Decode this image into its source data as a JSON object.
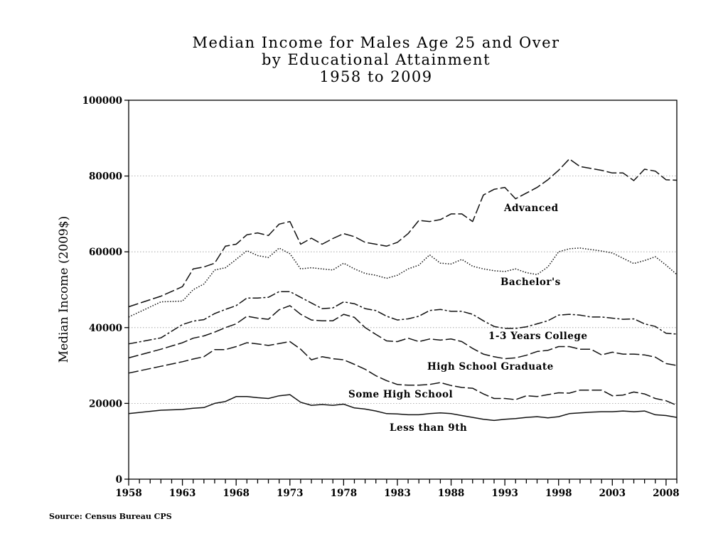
{
  "chart_data": {
    "type": "line",
    "title": [
      "Median Income for Males Age 25 and Over",
      "by Educational Attainment",
      "1958 to 2009"
    ],
    "xlabel": "",
    "ylabel": "Median Income (2009$)",
    "xlim": [
      1958,
      2009
    ],
    "ylim": [
      0,
      100000
    ],
    "x_ticks": [
      1958,
      1963,
      1968,
      1973,
      1978,
      1983,
      1988,
      1993,
      1998,
      2003,
      2008
    ],
    "y_ticks": [
      0,
      20000,
      40000,
      60000,
      80000,
      100000
    ],
    "grid": "horizontal dotted",
    "legend": "none (series labeled inline)",
    "series": [
      {
        "name": "Advanced",
        "style": "long-dash",
        "points": [
          [
            1958,
            45500
          ],
          [
            1961,
            48300
          ],
          [
            1963,
            50800
          ],
          [
            1964,
            55500
          ],
          [
            1965,
            56000
          ],
          [
            1966,
            57000
          ],
          [
            1967,
            61500
          ],
          [
            1968,
            62000
          ],
          [
            1969,
            64500
          ],
          [
            1970,
            65000
          ],
          [
            1971,
            64300
          ],
          [
            1972,
            67300
          ],
          [
            1973,
            68000
          ],
          [
            1974,
            62000
          ],
          [
            1975,
            63600
          ],
          [
            1976,
            62000
          ],
          [
            1977,
            63500
          ],
          [
            1978,
            64800
          ],
          [
            1979,
            64000
          ],
          [
            1980,
            62500
          ],
          [
            1981,
            62000
          ],
          [
            1982,
            61500
          ],
          [
            1983,
            62500
          ],
          [
            1984,
            64800
          ],
          [
            1985,
            68300
          ],
          [
            1986,
            68000
          ],
          [
            1987,
            68500
          ],
          [
            1988,
            70000
          ],
          [
            1989,
            70000
          ],
          [
            1990,
            68000
          ],
          [
            1991,
            75000
          ],
          [
            1992,
            76500
          ],
          [
            1993,
            77000
          ],
          [
            1994,
            74000
          ],
          [
            1995,
            75500
          ],
          [
            1996,
            77000
          ],
          [
            1997,
            79000
          ],
          [
            1998,
            81500
          ],
          [
            1999,
            84500
          ],
          [
            2000,
            82500
          ],
          [
            2001,
            82000
          ],
          [
            2002,
            81500
          ],
          [
            2003,
            80800
          ],
          [
            2004,
            80800
          ],
          [
            2005,
            78800
          ],
          [
            2006,
            81800
          ],
          [
            2007,
            81300
          ],
          [
            2008,
            79000
          ],
          [
            2009,
            78900
          ]
        ]
      },
      {
        "name": "Bachelor's",
        "style": "dotted",
        "points": [
          [
            1958,
            42800
          ],
          [
            1961,
            46800
          ],
          [
            1963,
            47000
          ],
          [
            1964,
            50000
          ],
          [
            1965,
            51500
          ],
          [
            1966,
            55200
          ],
          [
            1967,
            55800
          ],
          [
            1968,
            58000
          ],
          [
            1969,
            60300
          ],
          [
            1970,
            59000
          ],
          [
            1971,
            58500
          ],
          [
            1972,
            61000
          ],
          [
            1973,
            59500
          ],
          [
            1974,
            55500
          ],
          [
            1975,
            55800
          ],
          [
            1976,
            55500
          ],
          [
            1977,
            55200
          ],
          [
            1978,
            57000
          ],
          [
            1979,
            55500
          ],
          [
            1980,
            54300
          ],
          [
            1981,
            53800
          ],
          [
            1982,
            53000
          ],
          [
            1983,
            53800
          ],
          [
            1984,
            55500
          ],
          [
            1985,
            56500
          ],
          [
            1986,
            59200
          ],
          [
            1987,
            57000
          ],
          [
            1988,
            56800
          ],
          [
            1989,
            58000
          ],
          [
            1990,
            56200
          ],
          [
            1991,
            55500
          ],
          [
            1992,
            55000
          ],
          [
            1993,
            54800
          ],
          [
            1994,
            55500
          ],
          [
            1995,
            54500
          ],
          [
            1996,
            54000
          ],
          [
            1997,
            56000
          ],
          [
            1998,
            60000
          ],
          [
            1999,
            60800
          ],
          [
            2000,
            61000
          ],
          [
            2001,
            60600
          ],
          [
            2002,
            60200
          ],
          [
            2003,
            59700
          ],
          [
            2004,
            58300
          ],
          [
            2005,
            56900
          ],
          [
            2006,
            57700
          ],
          [
            2007,
            58700
          ],
          [
            2008,
            56500
          ],
          [
            2009,
            54000
          ]
        ]
      },
      {
        "name": "1-3 Years College",
        "style": "dash-dot",
        "points": [
          [
            1958,
            35700
          ],
          [
            1961,
            37300
          ],
          [
            1963,
            40800
          ],
          [
            1964,
            41700
          ],
          [
            1965,
            42100
          ],
          [
            1966,
            43700
          ],
          [
            1967,
            44800
          ],
          [
            1968,
            45800
          ],
          [
            1969,
            47800
          ],
          [
            1970,
            47800
          ],
          [
            1971,
            48000
          ],
          [
            1972,
            49500
          ],
          [
            1973,
            49500
          ],
          [
            1974,
            48000
          ],
          [
            1975,
            46500
          ],
          [
            1976,
            45000
          ],
          [
            1977,
            45200
          ],
          [
            1978,
            46800
          ],
          [
            1979,
            46300
          ],
          [
            1980,
            45000
          ],
          [
            1981,
            44500
          ],
          [
            1982,
            43000
          ],
          [
            1983,
            42000
          ],
          [
            1984,
            42300
          ],
          [
            1985,
            43000
          ],
          [
            1986,
            44500
          ],
          [
            1987,
            44800
          ],
          [
            1988,
            44300
          ],
          [
            1989,
            44300
          ],
          [
            1990,
            43500
          ],
          [
            1991,
            41800
          ],
          [
            1992,
            40300
          ],
          [
            1993,
            39800
          ],
          [
            1994,
            39800
          ],
          [
            1995,
            40200
          ],
          [
            1996,
            41000
          ],
          [
            1997,
            41800
          ],
          [
            1998,
            43300
          ],
          [
            1999,
            43500
          ],
          [
            2000,
            43300
          ],
          [
            2001,
            42800
          ],
          [
            2002,
            42800
          ],
          [
            2003,
            42500
          ],
          [
            2004,
            42200
          ],
          [
            2005,
            42300
          ],
          [
            2006,
            41000
          ],
          [
            2007,
            40300
          ],
          [
            2008,
            38500
          ],
          [
            2009,
            38300
          ]
        ]
      },
      {
        "name": "High School Graduate",
        "style": "long-dash",
        "points": [
          [
            1958,
            32000
          ],
          [
            1961,
            34300
          ],
          [
            1963,
            36000
          ],
          [
            1964,
            37200
          ],
          [
            1965,
            37800
          ],
          [
            1966,
            38800
          ],
          [
            1967,
            40000
          ],
          [
            1968,
            41000
          ],
          [
            1969,
            43000
          ],
          [
            1970,
            42500
          ],
          [
            1971,
            42200
          ],
          [
            1972,
            44700
          ],
          [
            1973,
            45800
          ],
          [
            1974,
            43500
          ],
          [
            1975,
            42000
          ],
          [
            1976,
            41800
          ],
          [
            1977,
            41800
          ],
          [
            1978,
            43500
          ],
          [
            1979,
            42700
          ],
          [
            1980,
            40000
          ],
          [
            1981,
            38200
          ],
          [
            1982,
            36500
          ],
          [
            1983,
            36300
          ],
          [
            1984,
            37200
          ],
          [
            1985,
            36300
          ],
          [
            1986,
            37000
          ],
          [
            1987,
            36700
          ],
          [
            1988,
            37000
          ],
          [
            1989,
            36300
          ],
          [
            1990,
            34500
          ],
          [
            1991,
            33000
          ],
          [
            1992,
            32300
          ],
          [
            1993,
            31800
          ],
          [
            1994,
            32000
          ],
          [
            1995,
            32700
          ],
          [
            1996,
            33700
          ],
          [
            1997,
            34000
          ],
          [
            1998,
            35000
          ],
          [
            1999,
            35000
          ],
          [
            2000,
            34300
          ],
          [
            2001,
            34300
          ],
          [
            2002,
            32800
          ],
          [
            2003,
            33500
          ],
          [
            2004,
            33000
          ],
          [
            2005,
            33000
          ],
          [
            2006,
            32800
          ],
          [
            2007,
            32200
          ],
          [
            2008,
            30500
          ],
          [
            2009,
            30000
          ]
        ]
      },
      {
        "name": "Some High School",
        "style": "long-dash",
        "points": [
          [
            1958,
            28000
          ],
          [
            1961,
            29800
          ],
          [
            1963,
            31000
          ],
          [
            1964,
            31700
          ],
          [
            1965,
            32300
          ],
          [
            1966,
            34200
          ],
          [
            1967,
            34200
          ],
          [
            1968,
            35000
          ],
          [
            1969,
            36000
          ],
          [
            1970,
            35700
          ],
          [
            1971,
            35300
          ],
          [
            1972,
            35800
          ],
          [
            1973,
            36300
          ],
          [
            1974,
            34300
          ],
          [
            1975,
            31500
          ],
          [
            1976,
            32300
          ],
          [
            1977,
            31800
          ],
          [
            1978,
            31500
          ],
          [
            1979,
            30300
          ],
          [
            1980,
            29000
          ],
          [
            1981,
            27300
          ],
          [
            1982,
            26000
          ],
          [
            1983,
            25000
          ],
          [
            1984,
            24800
          ],
          [
            1985,
            24800
          ],
          [
            1986,
            25000
          ],
          [
            1987,
            25500
          ],
          [
            1988,
            24700
          ],
          [
            1989,
            24200
          ],
          [
            1990,
            24000
          ],
          [
            1991,
            22500
          ],
          [
            1992,
            21300
          ],
          [
            1993,
            21300
          ],
          [
            1994,
            21000
          ],
          [
            1995,
            22000
          ],
          [
            1996,
            21800
          ],
          [
            1997,
            22300
          ],
          [
            1998,
            22800
          ],
          [
            1999,
            22700
          ],
          [
            2000,
            23500
          ],
          [
            2001,
            23500
          ],
          [
            2002,
            23500
          ],
          [
            2003,
            22000
          ],
          [
            2004,
            22200
          ],
          [
            2005,
            23000
          ],
          [
            2006,
            22500
          ],
          [
            2007,
            21300
          ],
          [
            2008,
            20700
          ],
          [
            2009,
            19500
          ]
        ]
      },
      {
        "name": "Less than 9th",
        "style": "solid",
        "points": [
          [
            1958,
            17300
          ],
          [
            1961,
            18200
          ],
          [
            1963,
            18400
          ],
          [
            1964,
            18700
          ],
          [
            1965,
            18900
          ],
          [
            1966,
            20000
          ],
          [
            1967,
            20500
          ],
          [
            1968,
            21800
          ],
          [
            1969,
            21800
          ],
          [
            1970,
            21500
          ],
          [
            1971,
            21300
          ],
          [
            1972,
            22000
          ],
          [
            1973,
            22300
          ],
          [
            1974,
            20300
          ],
          [
            1975,
            19500
          ],
          [
            1976,
            19700
          ],
          [
            1977,
            19500
          ],
          [
            1978,
            19800
          ],
          [
            1979,
            18800
          ],
          [
            1980,
            18500
          ],
          [
            1981,
            18000
          ],
          [
            1982,
            17300
          ],
          [
            1983,
            17200
          ],
          [
            1984,
            17000
          ],
          [
            1985,
            17000
          ],
          [
            1986,
            17300
          ],
          [
            1987,
            17500
          ],
          [
            1988,
            17300
          ],
          [
            1989,
            16800
          ],
          [
            1990,
            16300
          ],
          [
            1991,
            15800
          ],
          [
            1992,
            15500
          ],
          [
            1993,
            15800
          ],
          [
            1994,
            16000
          ],
          [
            1995,
            16300
          ],
          [
            1996,
            16500
          ],
          [
            1997,
            16200
          ],
          [
            1998,
            16500
          ],
          [
            1999,
            17300
          ],
          [
            2000,
            17500
          ],
          [
            2001,
            17700
          ],
          [
            2002,
            17800
          ],
          [
            2003,
            17800
          ],
          [
            2004,
            18000
          ],
          [
            2005,
            17800
          ],
          [
            2006,
            18000
          ],
          [
            2007,
            17000
          ],
          [
            2008,
            16800
          ],
          [
            2009,
            16300
          ]
        ]
      }
    ],
    "annotations": [
      "Advanced",
      "Bachelor's",
      "1-3 Years College",
      "High School Graduate",
      "Some High School",
      "Less than 9th"
    ],
    "source": "Source: Census Bureau CPS"
  }
}
